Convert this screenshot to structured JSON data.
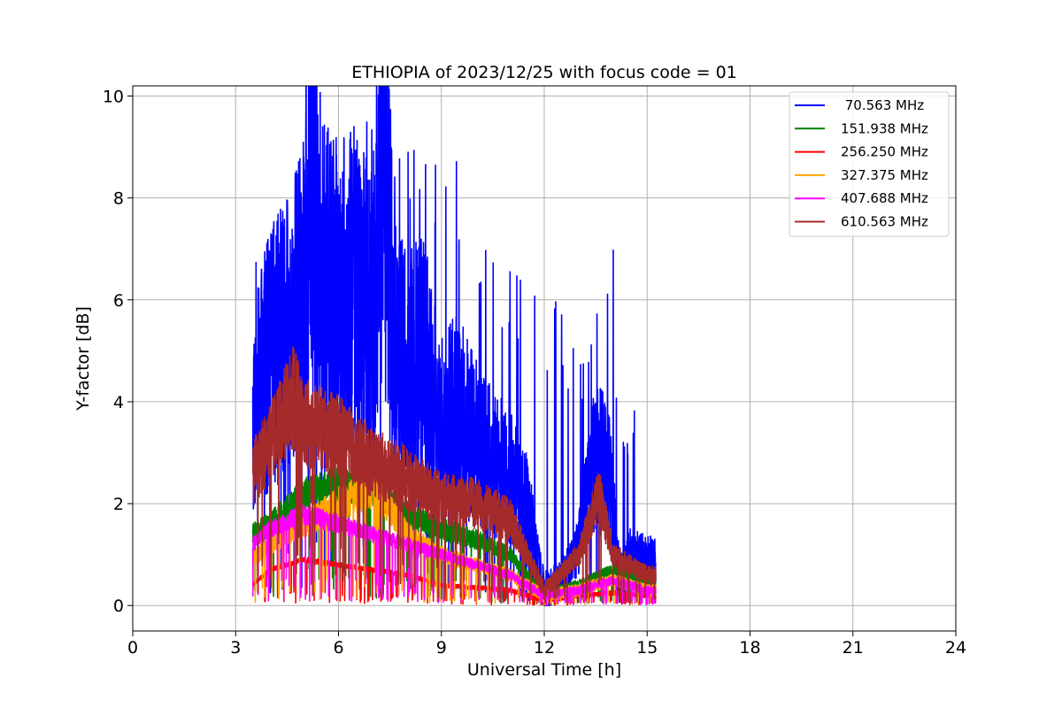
{
  "chart_data": {
    "type": "line",
    "title": "ETHIOPIA of 2023/12/25 with focus code = 01",
    "xlabel": "Universal Time [h]",
    "ylabel": "Y-factor [dB]",
    "xlim": [
      0,
      24
    ],
    "ylim": [
      -0.5,
      10.2
    ],
    "xticks": [
      0,
      3,
      6,
      9,
      12,
      15,
      18,
      21,
      24
    ],
    "yticks": [
      0,
      2,
      4,
      6,
      8,
      10
    ],
    "x_tick_labels": [
      "0",
      "3",
      "6",
      "9",
      "12",
      "15",
      "18",
      "21",
      "24"
    ],
    "y_tick_labels": [
      "0",
      "2",
      "4",
      "6",
      "8",
      "10"
    ],
    "grid": true,
    "legend_position": "top-right",
    "data_time_range": [
      3.5,
      15.25
    ],
    "series": [
      {
        "name": " 70.563 MHz",
        "color": "#0000ff",
        "x": [
          3.5,
          3.75,
          4.0,
          4.5,
          5.0,
          5.2,
          5.5,
          6.0,
          6.5,
          7.0,
          7.3,
          7.6,
          8.0,
          8.5,
          9.0,
          9.5,
          10.0,
          10.5,
          11.0,
          11.5,
          12.0,
          12.5,
          13.0,
          13.5,
          13.9,
          14.2,
          14.5,
          15.0,
          15.25
        ],
        "values": [
          3.5,
          4.5,
          4.8,
          5.3,
          6.0,
          9.7,
          6.2,
          6.0,
          6.2,
          5.6,
          9.4,
          5.2,
          4.5,
          4.8,
          3.5,
          3.8,
          3.2,
          2.8,
          2.5,
          2.0,
          0.3,
          0.5,
          1.2,
          3.0,
          2.5,
          0.6,
          1.0,
          0.9,
          0.9
        ],
        "peak_values": [
          7.0,
          7.6,
          7.4,
          8.3,
          9.7,
          9.5,
          9.1,
          9.2,
          9.4,
          8.9,
          7.7,
          6.9,
          6.7,
          6.6,
          6.4,
          5.5,
          7.1,
          4.1,
          1.4
        ]
      },
      {
        "name": "151.938 MHz",
        "color": "#008000",
        "x": [
          3.5,
          4.0,
          5.0,
          6.0,
          7.0,
          8.0,
          9.0,
          10.0,
          11.0,
          12.0,
          13.0,
          14.0,
          15.0,
          15.25
        ],
        "values": [
          1.4,
          1.6,
          2.2,
          2.4,
          2.3,
          1.8,
          1.5,
          1.3,
          1.0,
          0.2,
          0.4,
          0.7,
          0.5,
          0.5
        ]
      },
      {
        "name": "256.250 MHz",
        "color": "#ff0000",
        "x": [
          3.5,
          4.0,
          5.0,
          6.0,
          7.0,
          8.0,
          9.0,
          10.0,
          11.0,
          12.0,
          13.0,
          14.0,
          15.0,
          15.25
        ],
        "values": [
          0.4,
          0.7,
          0.9,
          0.8,
          0.7,
          0.6,
          0.4,
          0.35,
          0.3,
          0.1,
          0.2,
          0.25,
          0.2,
          0.2
        ]
      },
      {
        "name": "327.375 MHz",
        "color": "#ffa500",
        "x": [
          3.5,
          4.0,
          5.0,
          6.0,
          7.0,
          7.5,
          8.0,
          9.0,
          10.0,
          11.0,
          12.0,
          13.0,
          14.0,
          15.0,
          15.25
        ],
        "values": [
          0.9,
          1.2,
          1.6,
          2.0,
          2.3,
          1.9,
          1.4,
          1.0,
          0.8,
          0.6,
          0.2,
          0.3,
          0.5,
          0.3,
          0.3
        ]
      },
      {
        "name": "407.688 MHz",
        "color": "#ff00ff",
        "x": [
          3.5,
          4.0,
          5.0,
          6.0,
          7.0,
          8.0,
          9.0,
          10.0,
          11.0,
          12.0,
          13.0,
          14.0,
          15.0,
          15.25
        ],
        "values": [
          1.2,
          1.5,
          1.8,
          1.6,
          1.4,
          1.2,
          1.0,
          0.8,
          0.6,
          0.2,
          0.3,
          0.5,
          0.3,
          0.3
        ]
      },
      {
        "name": "610.563 MHz",
        "color": "#a52a2a",
        "x": [
          3.5,
          4.0,
          4.7,
          5.0,
          6.0,
          7.0,
          8.0,
          9.0,
          10.0,
          11.0,
          12.0,
          13.0,
          13.6,
          14.0,
          15.0,
          15.25
        ],
        "values": [
          2.6,
          3.2,
          4.1,
          3.6,
          3.3,
          2.8,
          2.5,
          2.1,
          2.0,
          1.7,
          0.3,
          1.0,
          2.2,
          1.0,
          0.6,
          0.6
        ]
      }
    ]
  }
}
